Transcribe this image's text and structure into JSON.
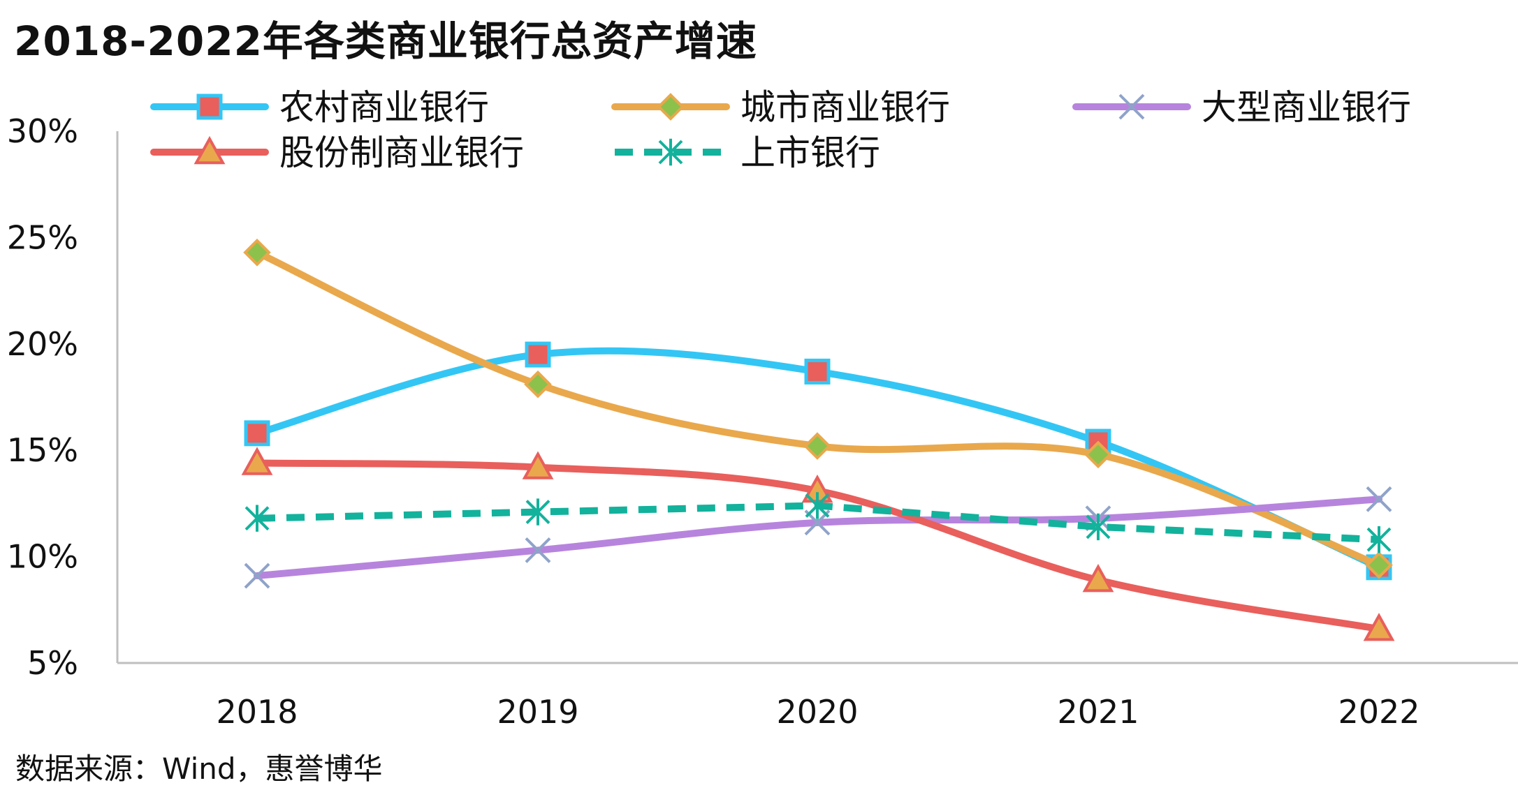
{
  "title": "2018-2022年各类商业银行总资产增速",
  "source": "数据来源：Wind，惠誉博华",
  "chart_data": {
    "type": "line",
    "title": "2018-2022年各类商业银行总资产增速",
    "categories": [
      "2018",
      "2019",
      "2020",
      "2021",
      "2022"
    ],
    "y_ticks": [
      "5%",
      "10%",
      "15%",
      "20%",
      "25%",
      "30%"
    ],
    "ylim": [
      5,
      30
    ],
    "grid": false,
    "legend_position": "top",
    "series": [
      {
        "name": "农村商业银行",
        "values": [
          15.8,
          19.5,
          18.7,
          15.4,
          9.5
        ],
        "color": "#33c6f4",
        "marker": "square",
        "marker_fill": "#e85f5c",
        "style": "solid",
        "smooth": true
      },
      {
        "name": "城市商业银行",
        "values": [
          24.3,
          18.1,
          15.2,
          14.8,
          9.6
        ],
        "color": "#e9a84c",
        "marker": "diamond",
        "marker_fill": "#8cc14c",
        "style": "solid",
        "smooth": true
      },
      {
        "name": "大型商业银行",
        "values": [
          9.1,
          10.3,
          11.6,
          11.8,
          12.7
        ],
        "color": "#b784dd",
        "marker": "x",
        "marker_fill": "#8fa3c9",
        "style": "solid",
        "smooth": true
      },
      {
        "name": "股份制商业银行",
        "values": [
          14.4,
          14.2,
          13.1,
          8.9,
          6.6
        ],
        "color": "#e85f5c",
        "marker": "triangle",
        "marker_fill": "#e9a84c",
        "style": "solid",
        "smooth": true
      },
      {
        "name": "上市银行",
        "values": [
          11.8,
          12.1,
          12.4,
          11.4,
          10.8
        ],
        "color": "#13b29c",
        "marker": "star",
        "marker_fill": "#13b29c",
        "style": "dashed",
        "smooth": false
      }
    ]
  }
}
